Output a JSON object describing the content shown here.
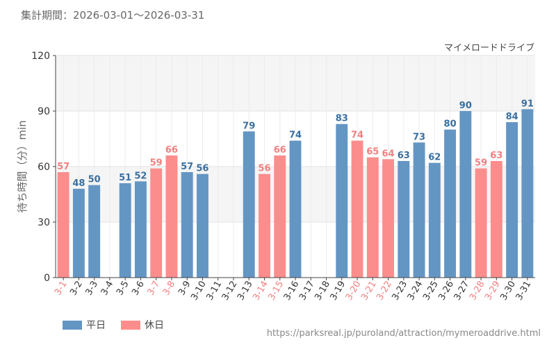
{
  "header": {
    "period_label": "集計期間：2026-03-01～2026-03-31"
  },
  "footer": {
    "url": "https://parksreal.jp/puroland/attraction/mymeroaddrive.html"
  },
  "colors": {
    "weekday": "#6496c4",
    "holiday": "#fc8d8d",
    "weekday_label": "#3a6f9e",
    "holiday_label": "#f08080"
  },
  "chart_data": {
    "type": "bar",
    "title": "マイメロードドライブ",
    "xlabel": "",
    "ylabel": "待ち時間（分）min",
    "ylim": [
      0,
      120
    ],
    "yticks": [
      0,
      30,
      60,
      90,
      120
    ],
    "grid": true,
    "legend_position": "bottom-left",
    "legend": [
      {
        "key": "weekday",
        "label": "平日"
      },
      {
        "key": "holiday",
        "label": "休日"
      }
    ],
    "categories": [
      "3-1",
      "3-2",
      "3-3",
      "3-4",
      "3-5",
      "3-6",
      "3-7",
      "3-8",
      "3-9",
      "3-10",
      "3-11",
      "3-12",
      "3-13",
      "3-14",
      "3-15",
      "3-16",
      "3-17",
      "3-18",
      "3-19",
      "3-20",
      "3-21",
      "3-22",
      "3-23",
      "3-24",
      "3-25",
      "3-26",
      "3-27",
      "3-28",
      "3-29",
      "3-30",
      "3-31"
    ],
    "values": [
      57,
      48,
      50,
      null,
      51,
      52,
      59,
      66,
      57,
      56,
      null,
      null,
      79,
      56,
      66,
      74,
      null,
      null,
      83,
      74,
      65,
      64,
      63,
      73,
      62,
      80,
      90,
      59,
      63,
      84,
      91
    ],
    "day_type": [
      "holiday",
      "weekday",
      "weekday",
      "weekday",
      "weekday",
      "weekday",
      "holiday",
      "holiday",
      "weekday",
      "weekday",
      "weekday",
      "weekday",
      "weekday",
      "holiday",
      "holiday",
      "weekday",
      "weekday",
      "weekday",
      "weekday",
      "holiday",
      "holiday",
      "holiday",
      "weekday",
      "weekday",
      "weekday",
      "weekday",
      "weekday",
      "holiday",
      "holiday",
      "weekday",
      "weekday"
    ]
  }
}
